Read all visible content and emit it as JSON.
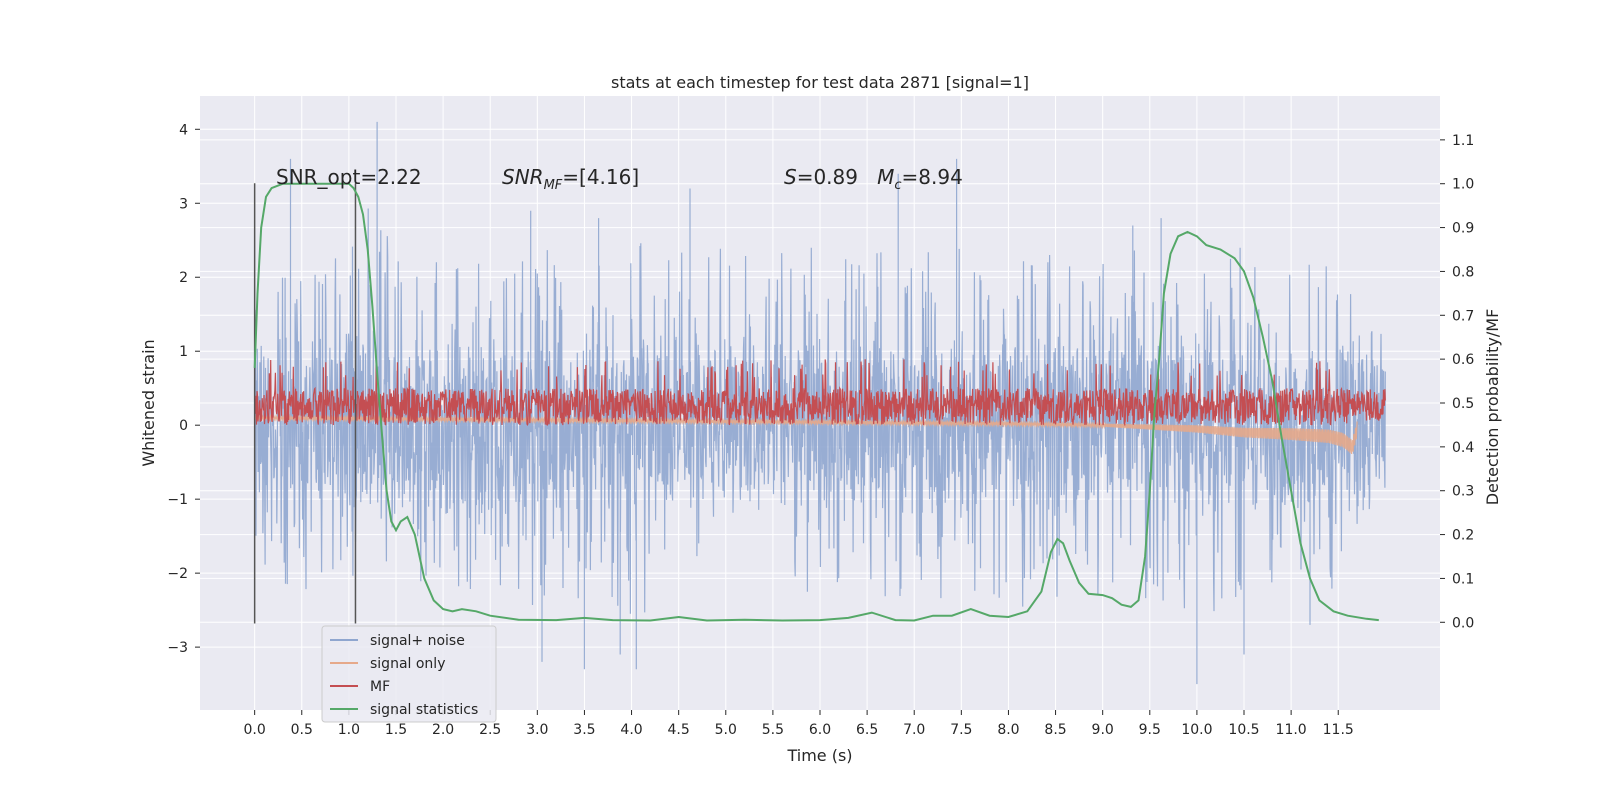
{
  "chart_data": {
    "type": "line",
    "title": "stats at each timestep for test data 2871 [signal=1]",
    "xlabel": "Time (s)",
    "ylabel": "Whitened strain",
    "y2label": "Detection probability/MF",
    "xlim": [
      -0.58,
      12.58
    ],
    "ylim": [
      -3.85,
      4.45
    ],
    "y2lim": [
      -0.2,
      1.2
    ],
    "x_ticks": [
      "0.0",
      "0.5",
      "1.0",
      "1.5",
      "2.0",
      "2.5",
      "3.0",
      "3.5",
      "4.0",
      "4.5",
      "5.0",
      "5.5",
      "6.0",
      "6.5",
      "7.0",
      "7.5",
      "8.0",
      "8.5",
      "9.0",
      "9.5",
      "10.0",
      "10.5",
      "11.0",
      "11.5"
    ],
    "y_ticks": [
      "−3",
      "−2",
      "−1",
      "0",
      "1",
      "2",
      "3",
      "4"
    ],
    "y2_ticks": [
      "0.0",
      "0.1",
      "0.2",
      "0.3",
      "0.4",
      "0.5",
      "0.6",
      "0.7",
      "0.8",
      "0.9",
      "1.0",
      "1.1"
    ],
    "grid": true,
    "legend_position": "lower-left",
    "annotations": [
      {
        "id": "snr-opt",
        "text": "SNR_opt=2.22"
      },
      {
        "id": "snr-mf",
        "text": "SNRMF=[4.16]",
        "parts": [
          "SNR",
          "MF",
          "=[4.16]"
        ]
      },
      {
        "id": "s-mc",
        "text": "S=0.89   Mc=8.94",
        "parts": [
          "S",
          "=0.89   ",
          "M",
          "c",
          "=8.94"
        ]
      }
    ],
    "vertical_markers": [
      0.0,
      1.07
    ],
    "series": [
      {
        "name": "signal+ noise",
        "color": "#8fa6cf",
        "axis": "left",
        "x_range": [
          0.0,
          12.0
        ],
        "envelope_upper": [
          [
            0.0,
            1.7
          ],
          [
            0.5,
            2.3
          ],
          [
            1.0,
            2.3
          ],
          [
            1.3,
            3.4
          ],
          [
            1.5,
            2.3
          ],
          [
            2.0,
            2.4
          ],
          [
            2.5,
            2.3
          ],
          [
            3.0,
            2.4
          ],
          [
            3.5,
            2.4
          ],
          [
            4.0,
            2.5
          ],
          [
            4.5,
            2.4
          ],
          [
            5.0,
            2.4
          ],
          [
            5.5,
            2.4
          ],
          [
            6.0,
            2.4
          ],
          [
            6.5,
            2.4
          ],
          [
            7.0,
            2.4
          ],
          [
            7.5,
            2.4
          ],
          [
            8.0,
            2.4
          ],
          [
            8.5,
            2.4
          ],
          [
            9.0,
            2.4
          ],
          [
            9.5,
            2.5
          ],
          [
            10.0,
            2.4
          ],
          [
            10.5,
            2.4
          ],
          [
            11.0,
            2.3
          ],
          [
            11.5,
            2.2
          ],
          [
            12.0,
            1.2
          ]
        ],
        "envelope_lower": [
          [
            0.0,
            -1.9
          ],
          [
            0.5,
            -2.3
          ],
          [
            1.0,
            -2.3
          ],
          [
            1.5,
            -2.3
          ],
          [
            2.0,
            -2.2
          ],
          [
            2.5,
            -2.3
          ],
          [
            3.0,
            -2.5
          ],
          [
            3.5,
            -2.4
          ],
          [
            4.0,
            -2.6
          ],
          [
            4.5,
            -2.4
          ],
          [
            5.0,
            -2.3
          ],
          [
            5.5,
            -2.4
          ],
          [
            6.0,
            -2.3
          ],
          [
            6.5,
            -2.4
          ],
          [
            7.0,
            -2.4
          ],
          [
            7.5,
            -2.4
          ],
          [
            8.0,
            -2.5
          ],
          [
            8.5,
            -2.4
          ],
          [
            9.0,
            -2.4
          ],
          [
            9.5,
            -2.5
          ],
          [
            10.0,
            -2.6
          ],
          [
            10.5,
            -2.5
          ],
          [
            11.0,
            -2.4
          ],
          [
            11.5,
            -2.2
          ],
          [
            12.0,
            -1.3
          ]
        ],
        "peaks": [
          [
            0.38,
            3.6
          ],
          [
            1.3,
            4.1
          ],
          [
            2.93,
            2.9
          ],
          [
            3.65,
            2.8
          ],
          [
            4.62,
            3.2
          ],
          [
            6.83,
            3.4
          ],
          [
            7.45,
            3.6
          ],
          [
            9.32,
            2.7
          ],
          [
            9.62,
            2.8
          ],
          [
            3.05,
            -3.2
          ],
          [
            3.5,
            -3.3
          ],
          [
            3.88,
            -3.1
          ],
          [
            4.05,
            -3.3
          ],
          [
            10.0,
            -3.5
          ],
          [
            10.5,
            -3.1
          ],
          [
            11.2,
            -2.7
          ]
        ]
      },
      {
        "name": "signal only",
        "color": "#e6a98a",
        "axis": "left",
        "points": [
          [
            0.0,
            0.1
          ],
          [
            2.0,
            0.08
          ],
          [
            4.0,
            0.06
          ],
          [
            6.0,
            0.04
          ],
          [
            8.0,
            0.02
          ],
          [
            9.0,
            0.0
          ],
          [
            10.0,
            -0.05
          ],
          [
            10.5,
            -0.1
          ],
          [
            11.0,
            -0.12
          ],
          [
            11.4,
            -0.15
          ],
          [
            11.55,
            -0.2
          ],
          [
            11.65,
            -0.3
          ],
          [
            11.7,
            -0.05
          ]
        ]
      },
      {
        "name": "MF",
        "color": "#c44e52",
        "axis": "left",
        "center": 0.27,
        "band": [
          0.0,
          0.5
        ],
        "peak_max": 0.9
      },
      {
        "name": "signal statistics",
        "color": "#55a868",
        "axis": "right",
        "points": [
          [
            0.0,
            0.58
          ],
          [
            0.03,
            0.75
          ],
          [
            0.07,
            0.9
          ],
          [
            0.12,
            0.97
          ],
          [
            0.18,
            0.99
          ],
          [
            0.3,
            1.0
          ],
          [
            0.5,
            1.0
          ],
          [
            0.8,
            1.0
          ],
          [
            1.0,
            1.0
          ],
          [
            1.05,
            0.99
          ],
          [
            1.1,
            0.97
          ],
          [
            1.15,
            0.93
          ],
          [
            1.2,
            0.85
          ],
          [
            1.25,
            0.72
          ],
          [
            1.3,
            0.57
          ],
          [
            1.35,
            0.43
          ],
          [
            1.4,
            0.3
          ],
          [
            1.45,
            0.23
          ],
          [
            1.5,
            0.21
          ],
          [
            1.55,
            0.23
          ],
          [
            1.62,
            0.24
          ],
          [
            1.7,
            0.2
          ],
          [
            1.8,
            0.1
          ],
          [
            1.9,
            0.05
          ],
          [
            2.0,
            0.03
          ],
          [
            2.1,
            0.025
          ],
          [
            2.2,
            0.03
          ],
          [
            2.35,
            0.025
          ],
          [
            2.5,
            0.015
          ],
          [
            2.8,
            0.006
          ],
          [
            3.2,
            0.005
          ],
          [
            3.5,
            0.01
          ],
          [
            3.8,
            0.005
          ],
          [
            4.2,
            0.004
          ],
          [
            4.5,
            0.012
          ],
          [
            4.8,
            0.004
          ],
          [
            5.2,
            0.006
          ],
          [
            5.6,
            0.004
          ],
          [
            6.0,
            0.005
          ],
          [
            6.3,
            0.01
          ],
          [
            6.55,
            0.022
          ],
          [
            6.8,
            0.005
          ],
          [
            7.0,
            0.004
          ],
          [
            7.2,
            0.015
          ],
          [
            7.4,
            0.015
          ],
          [
            7.6,
            0.03
          ],
          [
            7.8,
            0.015
          ],
          [
            8.0,
            0.012
          ],
          [
            8.2,
            0.025
          ],
          [
            8.35,
            0.07
          ],
          [
            8.45,
            0.16
          ],
          [
            8.52,
            0.19
          ],
          [
            8.58,
            0.18
          ],
          [
            8.65,
            0.14
          ],
          [
            8.75,
            0.09
          ],
          [
            8.85,
            0.065
          ],
          [
            9.0,
            0.062
          ],
          [
            9.1,
            0.055
          ],
          [
            9.2,
            0.04
          ],
          [
            9.3,
            0.035
          ],
          [
            9.38,
            0.05
          ],
          [
            9.45,
            0.15
          ],
          [
            9.5,
            0.3
          ],
          [
            9.55,
            0.48
          ],
          [
            9.6,
            0.6
          ],
          [
            9.65,
            0.75
          ],
          [
            9.72,
            0.84
          ],
          [
            9.8,
            0.88
          ],
          [
            9.9,
            0.89
          ],
          [
            10.0,
            0.88
          ],
          [
            10.1,
            0.86
          ],
          [
            10.25,
            0.85
          ],
          [
            10.4,
            0.83
          ],
          [
            10.5,
            0.8
          ],
          [
            10.6,
            0.74
          ],
          [
            10.7,
            0.65
          ],
          [
            10.8,
            0.55
          ],
          [
            10.9,
            0.42
          ],
          [
            11.0,
            0.3
          ],
          [
            11.1,
            0.18
          ],
          [
            11.2,
            0.1
          ],
          [
            11.3,
            0.05
          ],
          [
            11.45,
            0.025
          ],
          [
            11.6,
            0.015
          ],
          [
            11.8,
            0.008
          ],
          [
            11.93,
            0.005
          ]
        ]
      }
    ]
  }
}
